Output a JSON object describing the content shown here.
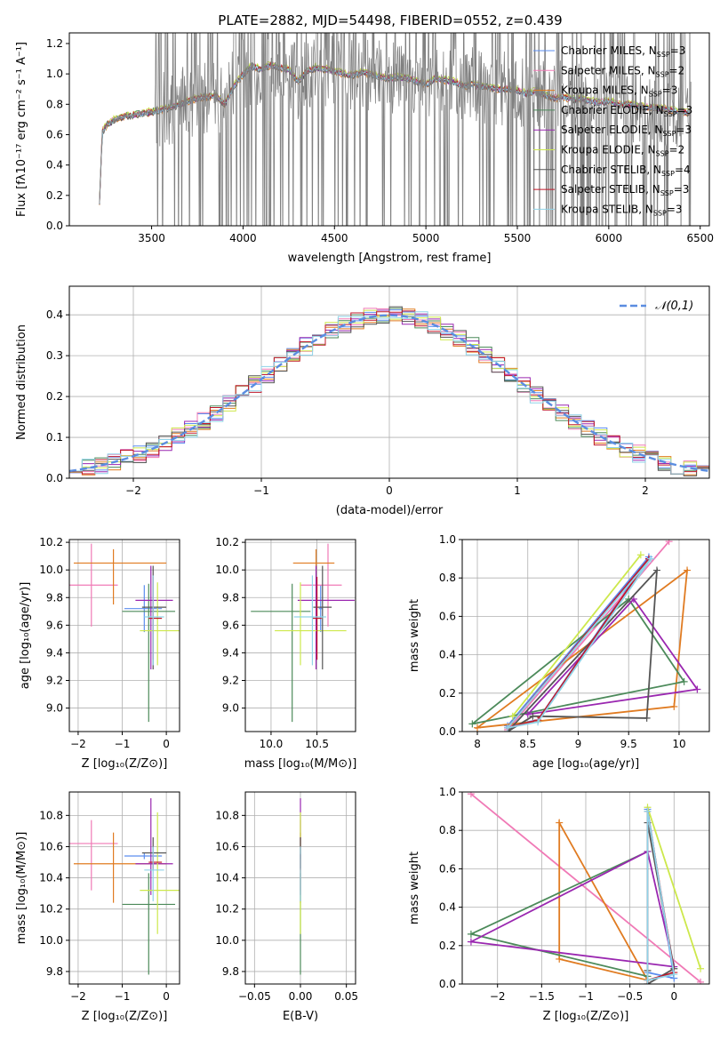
{
  "colors": [
    "#5b8def",
    "#f07ab6",
    "#e07b21",
    "#4c8a5a",
    "#9a27b0",
    "#cde84c",
    "#555555",
    "#c0182a",
    "#8fd3e8"
  ],
  "spectrum": {
    "title": "PLATE=2882, MJD=54498, FIBERID=0552, z=0.439",
    "xlabel": "wavelength [Angstrom, rest frame]",
    "ylabel": "Flux [fλ10⁻¹⁷ erg cm⁻² s⁻¹ A⁻¹]",
    "data_color": "#808080"
  },
  "residuals": {
    "xlabel": "(data-model)/error",
    "ylabel": "Normed distribution",
    "gaussian_label": "𝒩(0,1)"
  },
  "panels": {
    "age_z": {
      "xlabel": "Z [log₁₀(Z/Z⊙)]",
      "ylabel": "age  [log₁₀(age/yr)]"
    },
    "age_mass": {
      "xlabel": "mass [log₁₀(M/M⊙)]"
    },
    "weight_age": {
      "xlabel": "age  [log₁₀(age/yr)]",
      "ylabel": "mass weight"
    },
    "mass_z": {
      "xlabel": "Z [log₁₀(Z/Z⊙)]",
      "ylabel": "mass [log₁₀(M/M⊙)]"
    },
    "mass_ebv": {
      "xlabel": "E(B-V)"
    },
    "weight_z": {
      "xlabel": "Z [log₁₀(Z/Z⊙)]",
      "ylabel": "mass weight"
    }
  },
  "chart_data": [
    {
      "type": "line",
      "title": "PLATE=2882, MJD=54498, FIBERID=0552, z=0.439",
      "xlabel": "wavelength [Angstrom, rest frame]",
      "ylabel": "Flux [fλ10⁻¹⁷ erg cm⁻² s⁻¹ A⁻¹]",
      "xlim": [
        3050,
        6550
      ],
      "ylim": [
        0,
        1.27
      ],
      "xticks": [
        3500,
        4000,
        4500,
        5000,
        5500,
        6000,
        6500
      ],
      "yticks": [
        0.0,
        0.2,
        0.4,
        0.6,
        0.8,
        1.0,
        1.2
      ],
      "grid": false,
      "legend": "upper right",
      "continuum": {
        "x": [
          3210,
          3230,
          3260,
          3300,
          3350,
          3400,
          3450,
          3500,
          3550,
          3600,
          3650,
          3700,
          3750,
          3800,
          3850,
          3900,
          3950,
          4000,
          4050,
          4100,
          4150,
          4200,
          4250,
          4300,
          4350,
          4400,
          4450,
          4500,
          4550,
          4600,
          4650,
          4700,
          4750,
          4800,
          4850,
          4900,
          4950,
          5000,
          5050,
          5100,
          5150,
          5200,
          5250,
          5300,
          5350,
          5400,
          5450,
          5500,
          5550,
          5600,
          5650,
          5700,
          5750,
          5800,
          5850,
          5900,
          5950,
          6000,
          6050,
          6100,
          6150,
          6200,
          6250,
          6300,
          6350,
          6400,
          6450
        ],
        "y": [
          0.0,
          0.62,
          0.67,
          0.7,
          0.72,
          0.73,
          0.74,
          0.75,
          0.76,
          0.78,
          0.8,
          0.82,
          0.84,
          0.85,
          0.86,
          0.8,
          0.92,
          1.0,
          1.05,
          1.03,
          1.06,
          1.04,
          1.03,
          0.95,
          1.02,
          1.04,
          1.03,
          1.02,
          1.0,
          0.99,
          1.01,
          1.0,
          0.98,
          0.97,
          0.98,
          0.97,
          0.95,
          0.93,
          0.97,
          0.96,
          0.95,
          0.92,
          0.93,
          0.92,
          0.91,
          0.9,
          0.9,
          0.89,
          0.87,
          0.89,
          0.86,
          0.84,
          0.85,
          0.83,
          0.84,
          0.82,
          0.81,
          0.82,
          0.8,
          0.8,
          0.79,
          0.78,
          0.78,
          0.77,
          0.76,
          0.75,
          0.74
        ]
      },
      "model_offsets": [
        0.0,
        0.01,
        -0.012,
        0.008,
        -0.006,
        0.015,
        -0.01,
        0.004,
        -0.003
      ],
      "noise_region": {
        "noisy_from": 3520,
        "heavy_range": [
          3850,
          3990
        ]
      },
      "series": [
        {
          "name": "Chabrier MILES, N",
          "sub": "SSP",
          "suffix": "=3"
        },
        {
          "name": "Salpeter MILES, N",
          "sub": "SSP",
          "suffix": "=2"
        },
        {
          "name": "Kroupa MILES, N",
          "sub": "SSP",
          "suffix": "=3"
        },
        {
          "name": "Chabrier ELODIE, N",
          "sub": "SSP",
          "suffix": "=3"
        },
        {
          "name": "Salpeter ELODIE, N",
          "sub": "SSP",
          "suffix": "=3"
        },
        {
          "name": "Kroupa ELODIE, N",
          "sub": "SSP",
          "suffix": "=2"
        },
        {
          "name": "Chabrier STELIB, N",
          "sub": "SSP",
          "suffix": "=4"
        },
        {
          "name": "Salpeter STELIB, N",
          "sub": "SSP",
          "suffix": "=3"
        },
        {
          "name": "Kroupa STELIB, N",
          "sub": "SSP",
          "suffix": "=3"
        }
      ]
    },
    {
      "type": "line",
      "xlabel": "(data-model)/error",
      "ylabel": "Normed distribution",
      "xlim": [
        -2.5,
        2.5
      ],
      "ylim": [
        0,
        0.47
      ],
      "xticks": [
        -2,
        -1,
        0,
        1,
        2
      ],
      "yticks": [
        0.0,
        0.1,
        0.2,
        0.3,
        0.4
      ],
      "grid": true,
      "legend": "upper right",
      "gaussian": {
        "label": "𝒩(0,1)",
        "mean": 0,
        "sigma": 1
      },
      "bin_width": 0.1,
      "bin_start": -2.5,
      "jitter_amplitude": 0.022
    },
    {
      "type": "scatter",
      "xlabel": "Z [log₁₀(Z/Z⊙)]",
      "ylabel": "age  [log₁₀(age/yr)]",
      "xlim": [
        -2.2,
        0.3
      ],
      "ylim": [
        8.83,
        10.22
      ],
      "xticks": [
        -2,
        -1,
        0
      ],
      "yticks": [
        9.0,
        9.2,
        9.4,
        9.6,
        9.8,
        10.0,
        10.2
      ],
      "grid": true
    },
    {
      "type": "scatter",
      "xlabel": "mass [log₁₀(M/M⊙)]",
      "xlim": [
        9.72,
        10.92
      ],
      "ylim": [
        8.83,
        10.22
      ],
      "xticks": [
        10.0,
        10.5
      ],
      "xticklabels": [
        "10.0",
        "10.5"
      ],
      "yticks": [
        9.0,
        9.2,
        9.4,
        9.6,
        9.8,
        10.0,
        10.2
      ],
      "grid": true
    },
    {
      "type": "line",
      "xlabel": "age  [log₁₀(age/yr)]",
      "ylabel": "mass weight",
      "xlim": [
        7.85,
        10.3
      ],
      "ylim": [
        0,
        1.0
      ],
      "xticks": [
        8.0,
        8.5,
        9.0,
        9.5,
        10.0
      ],
      "yticks": [
        0.0,
        0.2,
        0.4,
        0.6,
        0.8,
        1.0
      ],
      "grid": true
    },
    {
      "type": "scatter",
      "xlabel": "Z [log₁₀(Z/Z⊙)]",
      "ylabel": "mass [log₁₀(M/M⊙)]",
      "xlim": [
        -2.2,
        0.3
      ],
      "ylim": [
        9.72,
        10.95
      ],
      "xticks": [
        -2,
        -1,
        0
      ],
      "yticks": [
        9.8,
        10.0,
        10.2,
        10.4,
        10.6,
        10.8
      ],
      "grid": true
    },
    {
      "type": "scatter",
      "xlabel": "E(B-V)",
      "xlim": [
        -0.06,
        0.06
      ],
      "ylim": [
        9.72,
        10.95
      ],
      "xticks": [
        -0.05,
        0.0,
        0.05
      ],
      "xticklabels": [
        "−0.05",
        "0.00",
        "0.05"
      ],
      "yticks": [
        9.8,
        10.0,
        10.2,
        10.4,
        10.6,
        10.8
      ],
      "grid": true
    },
    {
      "type": "line",
      "xlabel": "Z [log₁₀(Z/Z⊙)]",
      "ylabel": "mass weight",
      "xlim": [
        -2.4,
        0.4
      ],
      "ylim": [
        0,
        1.0
      ],
      "xticks": [
        -2.0,
        -1.5,
        -1.0,
        -0.5,
        0.0
      ],
      "yticks": [
        0.0,
        0.2,
        0.4,
        0.6,
        0.8,
        1.0
      ],
      "grid": true
    }
  ],
  "fits": [
    {
      "name": "Chabrier MILES",
      "age": 9.72,
      "age_err": [
        0.17,
        0.17
      ],
      "Z": -0.5,
      "Z_err": [
        0.45,
        0.4
      ],
      "mass": 10.54,
      "mass_err": [
        0.02,
        0.02
      ],
      "ebv": 0.0,
      "ssp": [
        {
          "age": 8.6,
          "Z": -0.3,
          "w": 0.06
        },
        {
          "age": 9.7,
          "Z": -0.3,
          "w": 0.91
        },
        {
          "age": 8.3,
          "Z": 0.0,
          "w": 0.03
        }
      ]
    },
    {
      "name": "Salpeter MILES",
      "age": 9.89,
      "age_err": [
        0.3,
        0.3
      ],
      "Z": -1.7,
      "Z_err": [
        0.6,
        0.6
      ],
      "mass": 10.62,
      "mass_err": [
        0.3,
        0.15
      ],
      "ebv": 0.0,
      "ssp": [
        {
          "age": 9.9,
          "Z": -2.3,
          "w": 0.99
        },
        {
          "age": 8.3,
          "Z": 0.3,
          "w": 0.01
        }
      ]
    },
    {
      "name": "Kroupa MILES",
      "age": 10.05,
      "age_err": [
        0.3,
        0.1
      ],
      "Z": -1.2,
      "Z_err": [
        0.9,
        1.2
      ],
      "mass": 10.49,
      "mass_err": [
        0.25,
        0.2
      ],
      "ebv": 0.0,
      "ssp": [
        {
          "age": 8.0,
          "Z": -0.3,
          "w": 0.02
        },
        {
          "age": 9.95,
          "Z": -1.3,
          "w": 0.13
        },
        {
          "age": 10.08,
          "Z": -1.3,
          "w": 0.84
        }
      ]
    },
    {
      "name": "Chabrier ELODIE",
      "age": 9.7,
      "age_err": [
        0.8,
        0.2
      ],
      "Z": -0.4,
      "Z_err": [
        0.6,
        0.6
      ],
      "mass": 10.23,
      "mass_err": [
        0.45,
        0.2
      ],
      "ebv": 0.0,
      "ssp": [
        {
          "age": 7.95,
          "Z": -0.3,
          "w": 0.04
        },
        {
          "age": 9.5,
          "Z": -0.3,
          "w": 0.69
        },
        {
          "age": 10.05,
          "Z": -2.3,
          "w": 0.26
        }
      ]
    },
    {
      "name": "Salpeter ELODIE",
      "age": 9.78,
      "age_err": [
        0.5,
        0.25
      ],
      "Z": -0.35,
      "Z_err": [
        0.35,
        0.5
      ],
      "mass": 10.49,
      "mass_err": [
        0.2,
        0.42
      ],
      "ebv": 0.0,
      "ssp": [
        {
          "age": 8.5,
          "Z": 0.0,
          "w": 0.09
        },
        {
          "age": 9.55,
          "Z": -0.3,
          "w": 0.69
        },
        {
          "age": 10.18,
          "Z": -2.3,
          "w": 0.22
        }
      ]
    },
    {
      "name": "Kroupa ELODIE",
      "age": 9.56,
      "age_err": [
        0.25,
        0.35
      ],
      "Z": -0.2,
      "Z_err": [
        0.4,
        0.5
      ],
      "mass": 10.32,
      "mass_err": [
        0.28,
        0.5
      ],
      "ebv": 0.0,
      "ssp": [
        {
          "age": 8.35,
          "Z": 0.3,
          "w": 0.08
        },
        {
          "age": 9.62,
          "Z": -0.3,
          "w": 0.92
        }
      ]
    },
    {
      "name": "Chabrier STELIB",
      "age": 9.73,
      "age_err": [
        0.45,
        0.3
      ],
      "Z": -0.3,
      "Z_err": [
        0.25,
        0.3
      ],
      "mass": 10.56,
      "mass_err": [
        0.1,
        0.1
      ],
      "ebv": 0.0,
      "ssp": [
        {
          "age": 8.3,
          "Z": -0.3,
          "w": 0.0
        },
        {
          "age": 8.55,
          "Z": 0.0,
          "w": 0.08
        },
        {
          "age": 9.68,
          "Z": -0.3,
          "w": 0.07
        },
        {
          "age": 9.78,
          "Z": -0.3,
          "w": 0.84
        }
      ]
    },
    {
      "name": "Salpeter STELIB",
      "age": 9.65,
      "age_err": [
        0.3,
        0.3
      ],
      "Z": -0.3,
      "Z_err": [
        0.1,
        0.2
      ],
      "mass": 10.5,
      "mass_err": [
        0.05,
        0.05
      ],
      "ebv": 0.0,
      "ssp": [
        {
          "age": 8.3,
          "Z": -0.3,
          "w": 0.02
        },
        {
          "age": 9.7,
          "Z": -0.3,
          "w": 0.9
        },
        {
          "age": 8.6,
          "Z": 0.0,
          "w": 0.06
        }
      ]
    },
    {
      "name": "Kroupa STELIB",
      "age": 9.66,
      "age_err": [
        0.35,
        0.3
      ],
      "Z": -0.3,
      "Z_err": [
        0.2,
        0.25
      ],
      "mass": 10.45,
      "mass_err": [
        0.2,
        0.15
      ],
      "ebv": 0.0,
      "ssp": [
        {
          "age": 8.3,
          "Z": -0.3,
          "w": 0.02
        },
        {
          "age": 9.72,
          "Z": -0.3,
          "w": 0.9
        },
        {
          "age": 8.6,
          "Z": 0.0,
          "w": 0.05
        }
      ]
    }
  ]
}
